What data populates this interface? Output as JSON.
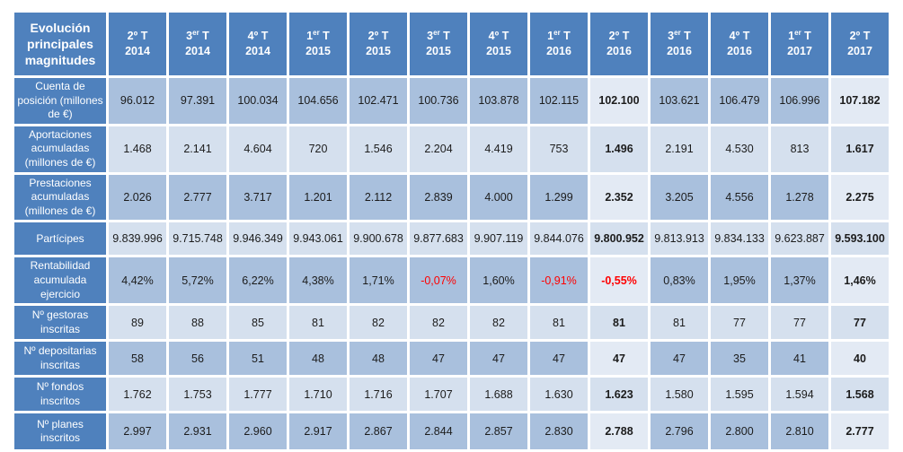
{
  "chart_data": {
    "type": "table",
    "title": "Evolución principales magnitudes",
    "corner_label": "Evolución principales magnitudes",
    "t_label": "T",
    "categories": [
      "2º T 2014",
      "3er T 2014",
      "4º T 2014",
      "1er T 2015",
      "2º T 2015",
      "3er T 2015",
      "4º T 2015",
      "1er T 2016",
      "2º T 2016",
      "3er T 2016",
      "4º T 2016",
      "1er T 2017",
      "2º T 2017"
    ],
    "columns": [
      {
        "label": "2º T 2014",
        "num": "2",
        "ord": "º",
        "sup": false,
        "year": "2014"
      },
      {
        "label": "3er T 2014",
        "num": "3",
        "ord": "er",
        "sup": true,
        "year": "2014"
      },
      {
        "label": "4º T 2014",
        "num": "4",
        "ord": "º",
        "sup": false,
        "year": "2014"
      },
      {
        "label": "1er T 2015",
        "num": "1",
        "ord": "er",
        "sup": true,
        "year": "2015"
      },
      {
        "label": "2º T 2015",
        "num": "2",
        "ord": "º",
        "sup": false,
        "year": "2015"
      },
      {
        "label": "3er T 2015",
        "num": "3",
        "ord": "er",
        "sup": true,
        "year": "2015"
      },
      {
        "label": "4º T 2015",
        "num": "4",
        "ord": "º",
        "sup": false,
        "year": "2015"
      },
      {
        "label": "1er T 2016",
        "num": "1",
        "ord": "er",
        "sup": true,
        "year": "2016"
      },
      {
        "label": "2º T 2016",
        "num": "2",
        "ord": "º",
        "sup": false,
        "year": "2016"
      },
      {
        "label": "3er T 2016",
        "num": "3",
        "ord": "er",
        "sup": true,
        "year": "2016"
      },
      {
        "label": "4º T 2016",
        "num": "4",
        "ord": "º",
        "sup": false,
        "year": "2016"
      },
      {
        "label": "1er T 2017",
        "num": "1",
        "ord": "er",
        "sup": true,
        "year": "2017"
      },
      {
        "label": "2º T 2017",
        "num": "2",
        "ord": "º",
        "sup": false,
        "year": "2017"
      }
    ],
    "highlight_col_indexes": [
      8,
      12
    ],
    "rows": [
      {
        "label": "Cuenta de posición (millones de €)",
        "negative_red": false,
        "values": [
          "96.012",
          "97.391",
          "100.034",
          "104.656",
          "102.471",
          "100.736",
          "103.878",
          "102.115",
          "102.100",
          "103.621",
          "106.479",
          "106.996",
          "107.182"
        ]
      },
      {
        "label": "Aportaciones acumuladas (millones de €)",
        "negative_red": false,
        "values": [
          "1.468",
          "2.141",
          "4.604",
          "720",
          "1.546",
          "2.204",
          "4.419",
          "753",
          "1.496",
          "2.191",
          "4.530",
          "813",
          "1.617"
        ]
      },
      {
        "label": "Prestaciones acumuladas (millones de €)",
        "negative_red": false,
        "values": [
          "2.026",
          "2.777",
          "3.717",
          "1.201",
          "2.112",
          "2.839",
          "4.000",
          "1.299",
          "2.352",
          "3.205",
          "4.556",
          "1.278",
          "2.275"
        ]
      },
      {
        "label": "Partícipes",
        "negative_red": false,
        "values": [
          "9.839.996",
          "9.715.748",
          "9.946.349",
          "9.943.061",
          "9.900.678",
          "9.877.683",
          "9.907.119",
          "9.844.076",
          "9.800.952",
          "9.813.913",
          "9.834.133",
          "9.623.887",
          "9.593.100"
        ]
      },
      {
        "label": "Rentabilidad acumulada ejercicio",
        "negative_red": true,
        "values": [
          "4,42%",
          "5,72%",
          "6,22%",
          "4,38%",
          "1,71%",
          "-0,07%",
          "1,60%",
          "-0,91%",
          "-0,55%",
          "0,83%",
          "1,95%",
          "1,37%",
          "1,46%"
        ]
      },
      {
        "label": "Nº gestoras inscritas",
        "negative_red": false,
        "values": [
          "89",
          "88",
          "85",
          "81",
          "82",
          "82",
          "82",
          "81",
          "81",
          "81",
          "77",
          "77",
          "77"
        ]
      },
      {
        "label": "Nº depositarias inscritas",
        "negative_red": false,
        "values": [
          "58",
          "56",
          "51",
          "48",
          "48",
          "47",
          "47",
          "47",
          "47",
          "47",
          "35",
          "41",
          "40"
        ]
      },
      {
        "label": "Nº fondos inscritos",
        "negative_red": false,
        "values": [
          "1.762",
          "1.753",
          "1.777",
          "1.710",
          "1.716",
          "1.707",
          "1.688",
          "1.630",
          "1.623",
          "1.580",
          "1.595",
          "1.594",
          "1.568"
        ]
      },
      {
        "label": "Nº planes inscritos",
        "negative_red": false,
        "values": [
          "2.997",
          "2.931",
          "2.960",
          "2.917",
          "2.867",
          "2.844",
          "2.857",
          "2.830",
          "2.788",
          "2.796",
          "2.800",
          "2.810",
          "2.777"
        ]
      }
    ],
    "layout_hints": {
      "grid": "3px white separators between all cells",
      "legend": "none",
      "highlight_columns_style": "lighter background + bold text",
      "negative_values_style": "red text"
    }
  },
  "colors": {
    "header_bg": "#4f81bd",
    "header_text": "#ffffff",
    "row_odd_bg": "#a9c0dd",
    "row_even_bg": "#d5e0ee",
    "hl_bg": "#e3eaf4",
    "cell_text": "#1c1c1c",
    "neg_red": "#ff0000",
    "grid": "#ffffff"
  }
}
